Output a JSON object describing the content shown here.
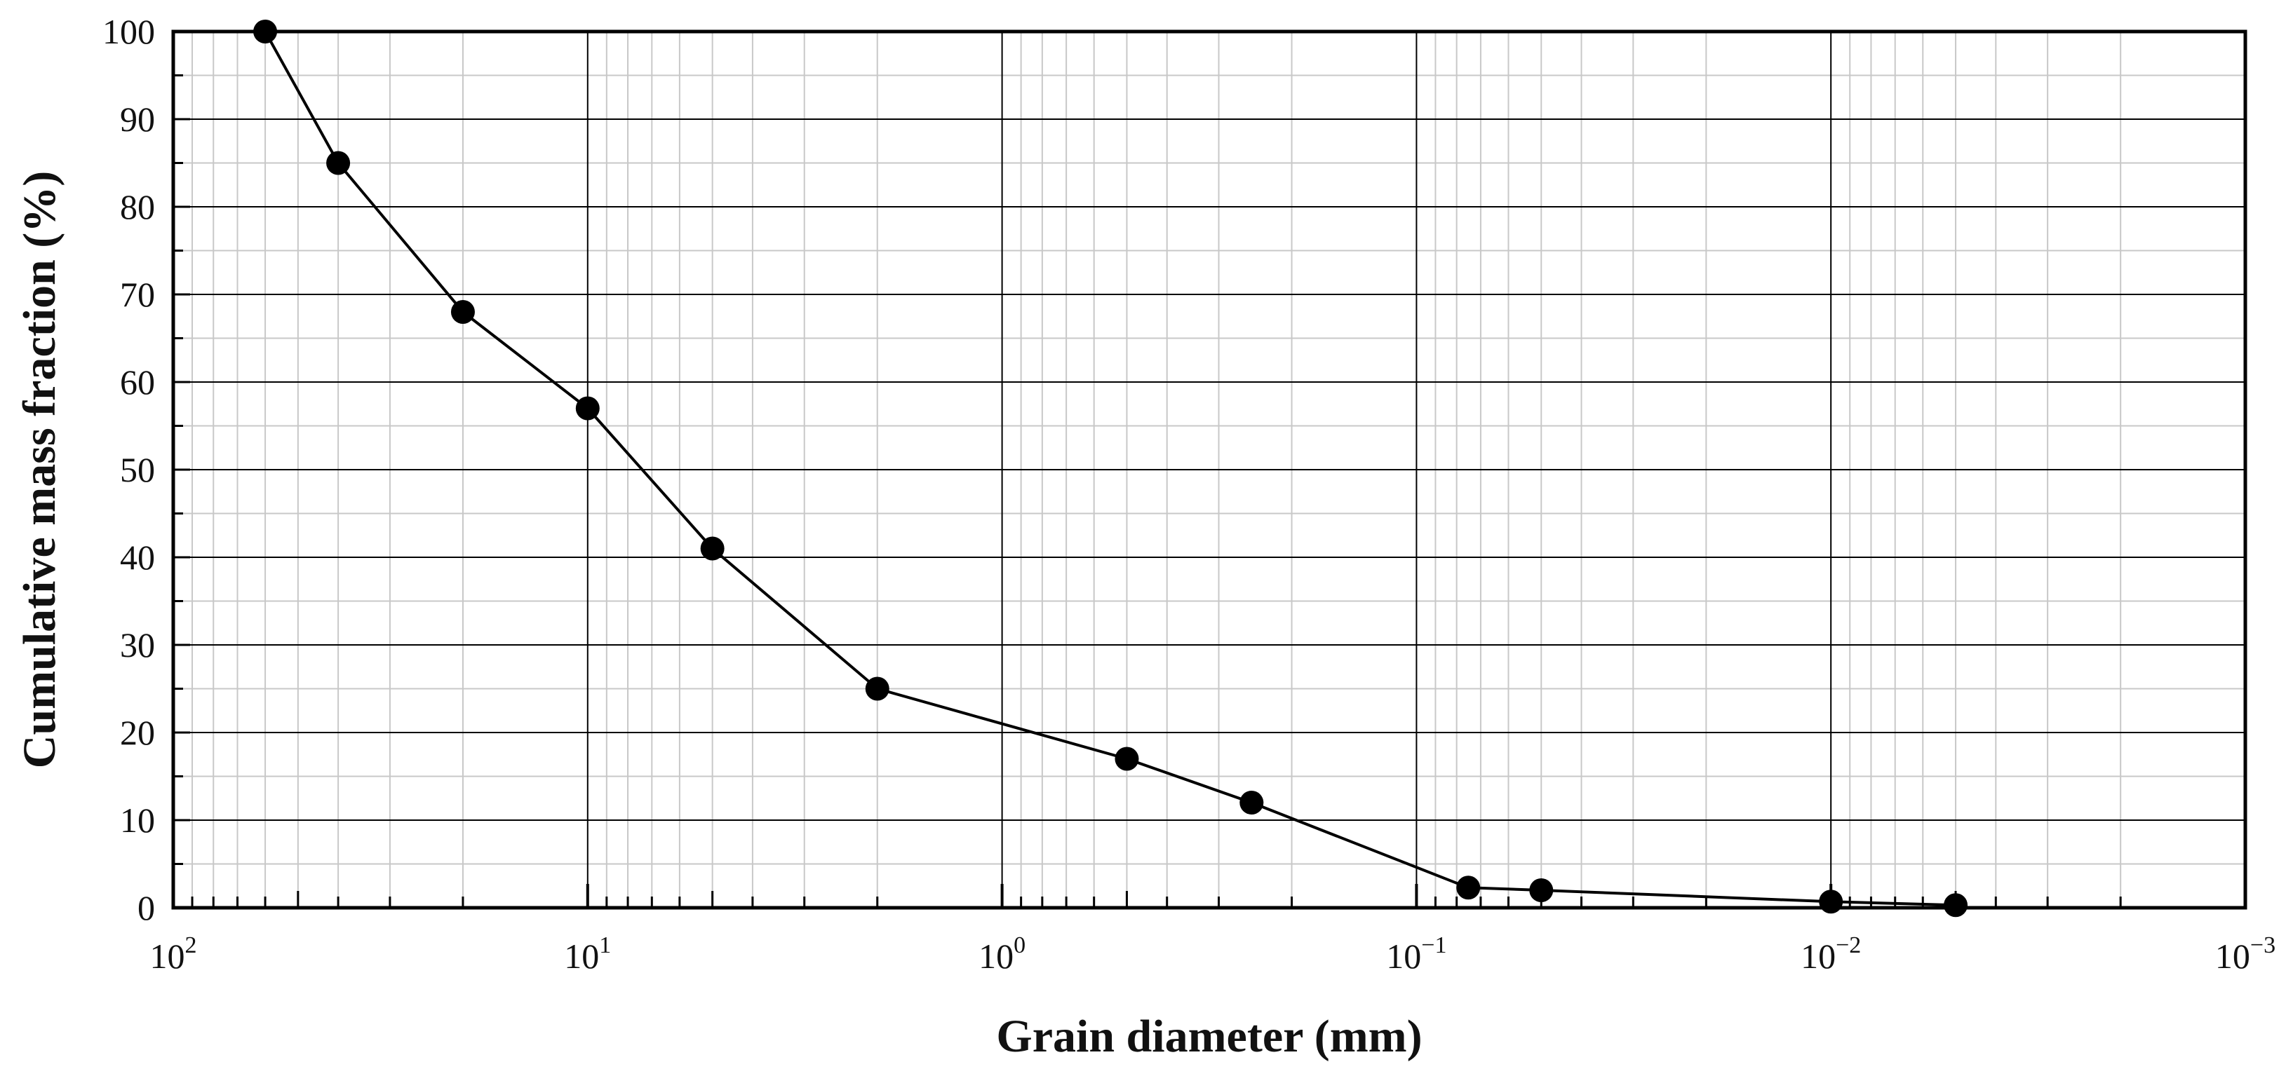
{
  "chart_data": {
    "type": "line",
    "title": "",
    "xlabel": "Grain diameter (mm)",
    "ylabel": "Cumulative mass fraction (%)",
    "x_scale": "log",
    "x_reversed": true,
    "xlim": [
      100,
      0.001
    ],
    "ylim": [
      0,
      100
    ],
    "grid": true,
    "x_ticks": [
      {
        "base": "10",
        "exp": "2"
      },
      {
        "base": "10",
        "exp": "1"
      },
      {
        "base": "10",
        "exp": "0"
      },
      {
        "base": "10",
        "exp": "−1"
      },
      {
        "base": "10",
        "exp": "−2"
      },
      {
        "base": "10",
        "exp": "−3"
      }
    ],
    "y_ticks": [
      "0",
      "10",
      "20",
      "30",
      "40",
      "50",
      "60",
      "70",
      "80",
      "90",
      "100"
    ],
    "series": [
      {
        "x": [
          60,
          40,
          20,
          10,
          5,
          2,
          0.5,
          0.25,
          0.075,
          0.05,
          0.01,
          0.005
        ],
        "y": [
          100,
          85,
          68,
          57,
          41,
          25,
          17,
          12,
          2.3,
          2.0,
          0.7,
          0.3
        ],
        "color": "#000000",
        "marker": "circle"
      }
    ]
  }
}
